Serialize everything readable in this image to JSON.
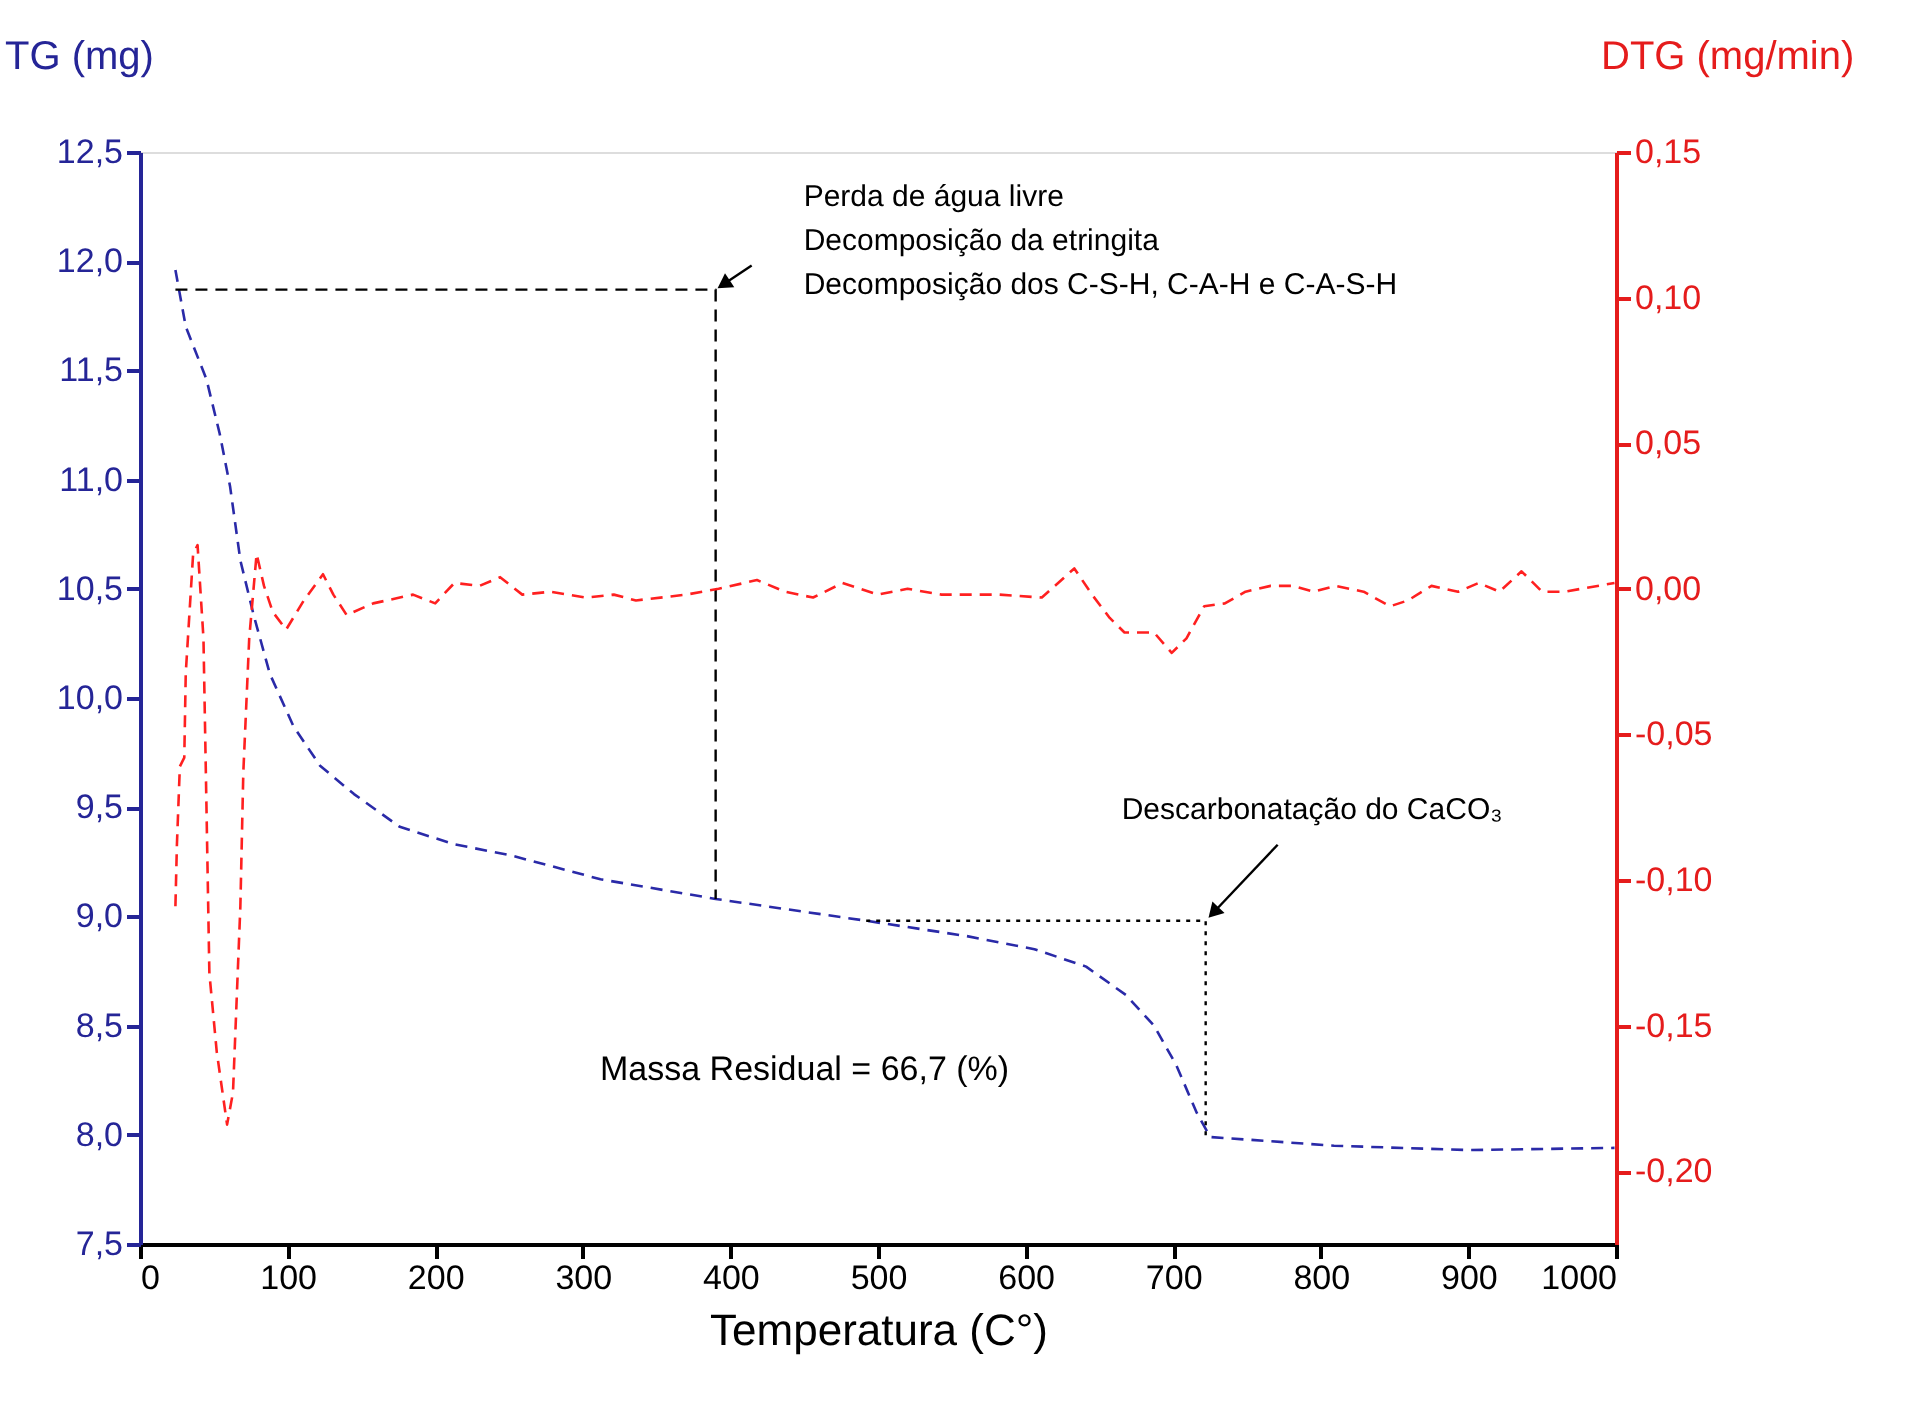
{
  "chart_data": {
    "type": "line",
    "xlabel": "Temperatura (C°)",
    "ylabel": "TG (mg)",
    "y2label": "DTG (mg/min)",
    "xlim": [
      0,
      1000
    ],
    "xticks": [
      0,
      100,
      200,
      300,
      400,
      500,
      600,
      700,
      800,
      900,
      1000
    ],
    "ylim": [
      7.5,
      12.5
    ],
    "yticks": [
      {
        "value": 7.5,
        "label": "7,5"
      },
      {
        "value": 8.0,
        "label": "8,0"
      },
      {
        "value": 8.5,
        "label": "8,5"
      },
      {
        "value": 9.0,
        "label": "9,0"
      },
      {
        "value": 9.5,
        "label": "9,5"
      },
      {
        "value": 10.0,
        "label": "10,0"
      },
      {
        "value": 10.5,
        "label": "10,5"
      },
      {
        "value": 11.0,
        "label": "11,0"
      },
      {
        "value": 11.5,
        "label": "11,5"
      },
      {
        "value": 12.0,
        "label": "12,0"
      },
      {
        "value": 12.5,
        "label": "12,5"
      }
    ],
    "y2lim": [
      -0.225,
      0.15
    ],
    "y2ticks": [
      {
        "value": -0.2,
        "label": "-0,20"
      },
      {
        "value": -0.15,
        "label": "-0,15"
      },
      {
        "value": -0.1,
        "label": "-0,10"
      },
      {
        "value": -0.05,
        "label": "-0,05"
      },
      {
        "value": 0.0,
        "label": "0,00"
      },
      {
        "value": 0.05,
        "label": "0,05"
      },
      {
        "value": 0.1,
        "label": "0,10"
      },
      {
        "value": 0.15,
        "label": "0,15"
      }
    ],
    "grid": false,
    "marker": "none",
    "line_style": "dashed",
    "series": [
      {
        "color": "#2a2aa8",
        "axis": "y",
        "x": [
          24,
          31,
          45,
          54,
          61,
          68,
          77,
          88,
          104,
          122,
          145,
          176,
          213,
          251,
          312,
          390,
          492,
          560,
          606,
          641,
          668,
          687,
          702,
          716,
          725,
          809,
          900,
          999
        ],
        "values": [
          11.96,
          11.7,
          11.46,
          11.21,
          10.97,
          10.63,
          10.38,
          10.11,
          9.87,
          9.69,
          9.56,
          9.41,
          9.33,
          9.28,
          9.17,
          9.08,
          8.98,
          8.91,
          8.85,
          8.77,
          8.64,
          8.5,
          8.32,
          8.1,
          7.99,
          7.95,
          7.93,
          7.94
        ]
      },
      {
        "color": "#ff2020",
        "axis": "y2",
        "x": [
          24,
          25,
          27,
          30,
          31,
          36,
          39,
          43,
          45,
          47,
          52,
          59,
          63,
          68,
          70,
          74,
          79,
          84,
          90,
          99,
          111,
          124,
          131,
          140,
          158,
          185,
          200,
          213,
          230,
          244,
          259,
          278,
          302,
          321,
          336,
          370,
          392,
          418,
          437,
          456,
          476,
          500,
          520,
          543,
          582,
          611,
          633,
          645,
          657,
          667,
          687,
          699,
          709,
          721,
          735,
          749,
          766,
          781,
          795,
          810,
          829,
          847,
          859,
          875,
          893,
          907,
          921,
          936,
          950,
          965,
          999
        ],
        "values": [
          -0.109,
          -0.088,
          -0.061,
          -0.058,
          -0.029,
          0.012,
          0.015,
          -0.017,
          -0.074,
          -0.132,
          -0.159,
          -0.184,
          -0.173,
          -0.109,
          -0.063,
          -0.017,
          0.012,
          0.001,
          -0.008,
          -0.014,
          -0.004,
          0.005,
          -0.002,
          -0.009,
          -0.005,
          -0.002,
          -0.005,
          0.002,
          0.001,
          0.004,
          -0.002,
          -0.001,
          -0.003,
          -0.002,
          -0.004,
          -0.002,
          0.0,
          0.003,
          -0.001,
          -0.003,
          0.002,
          -0.002,
          0.0,
          -0.002,
          -0.002,
          -0.003,
          0.007,
          -0.002,
          -0.01,
          -0.015,
          -0.015,
          -0.022,
          -0.017,
          -0.006,
          -0.005,
          -0.001,
          0.001,
          0.001,
          -0.001,
          0.001,
          -0.001,
          -0.006,
          -0.004,
          0.001,
          -0.001,
          0.002,
          -0.001,
          0.006,
          -0.001,
          -0.001,
          0.002
        ]
      },
      {
        "type": "line",
        "color": "#000000",
        "axis": "y",
        "line_style": "dashed",
        "x": [
          24,
          390,
          390
        ],
        "values": [
          11.87,
          11.87,
          9.08
        ]
      },
      {
        "type": "line",
        "color": "#000000",
        "axis": "y",
        "line_style": "dotted",
        "x": [
          492,
          722,
          722
        ],
        "values": [
          8.98,
          8.98,
          7.99
        ]
      }
    ],
    "annotations": [
      {
        "text": "Perda de água livre\nDecomposição da etringita\nDecomposição dos C-S-H, C-A-H e C-A-S-H",
        "x": 390,
        "y": 11.87
      },
      {
        "text": "Descarbonatação do CaCO₃",
        "x": 722,
        "y": 8.98
      },
      "Massa Residual = 66,7 (%)"
    ]
  }
}
